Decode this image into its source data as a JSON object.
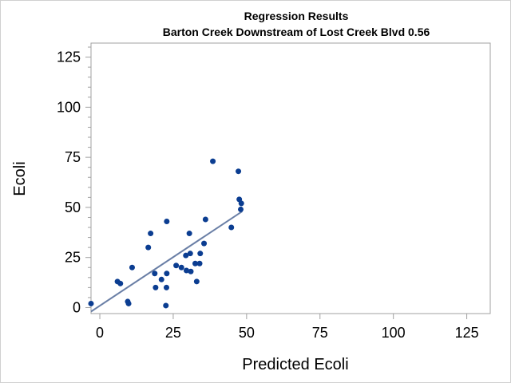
{
  "chart_data": {
    "type": "scatter",
    "title": "Regression Results",
    "subtitle": "Barton Creek Downstream of Lost Creek Blvd 0.56",
    "xlabel": "Predicted Ecoli",
    "ylabel": "Ecoli",
    "xlim": [
      -3,
      133
    ],
    "ylim": [
      -3,
      132
    ],
    "xticks": [
      "0",
      "25",
      "50",
      "75",
      "100",
      "125"
    ],
    "yticks": [
      "0",
      "25",
      "50",
      "75",
      "100",
      "125"
    ],
    "grid": false,
    "legend": "none",
    "colors": {
      "points": "#0b3d91",
      "fit_line": "#6a7fa6",
      "frame": "#a0a0a0"
    },
    "points": [
      [
        -3,
        2
      ],
      [
        6,
        13
      ],
      [
        7,
        12
      ],
      [
        9.5,
        3
      ],
      [
        9.8,
        2
      ],
      [
        11,
        20
      ],
      [
        16.5,
        30
      ],
      [
        17.3,
        37
      ],
      [
        18.7,
        17
      ],
      [
        19,
        10
      ],
      [
        21,
        14
      ],
      [
        22.5,
        1
      ],
      [
        22.7,
        10
      ],
      [
        22.8,
        17
      ],
      [
        22.8,
        43
      ],
      [
        26,
        21
      ],
      [
        27.8,
        20
      ],
      [
        29.3,
        26
      ],
      [
        29.5,
        18.5
      ],
      [
        30.5,
        37
      ],
      [
        30.8,
        27
      ],
      [
        31,
        18
      ],
      [
        32.5,
        22
      ],
      [
        33,
        13
      ],
      [
        34,
        22
      ],
      [
        34.2,
        27
      ],
      [
        35.5,
        32
      ],
      [
        36,
        44
      ],
      [
        38.5,
        73
      ],
      [
        44.8,
        40
      ],
      [
        47.2,
        68
      ],
      [
        47.5,
        54
      ],
      [
        48,
        49
      ],
      [
        48.2,
        52
      ]
    ],
    "fit_line": {
      "x": [
        -3,
        48.5
      ],
      "y": [
        -2,
        48
      ]
    }
  }
}
